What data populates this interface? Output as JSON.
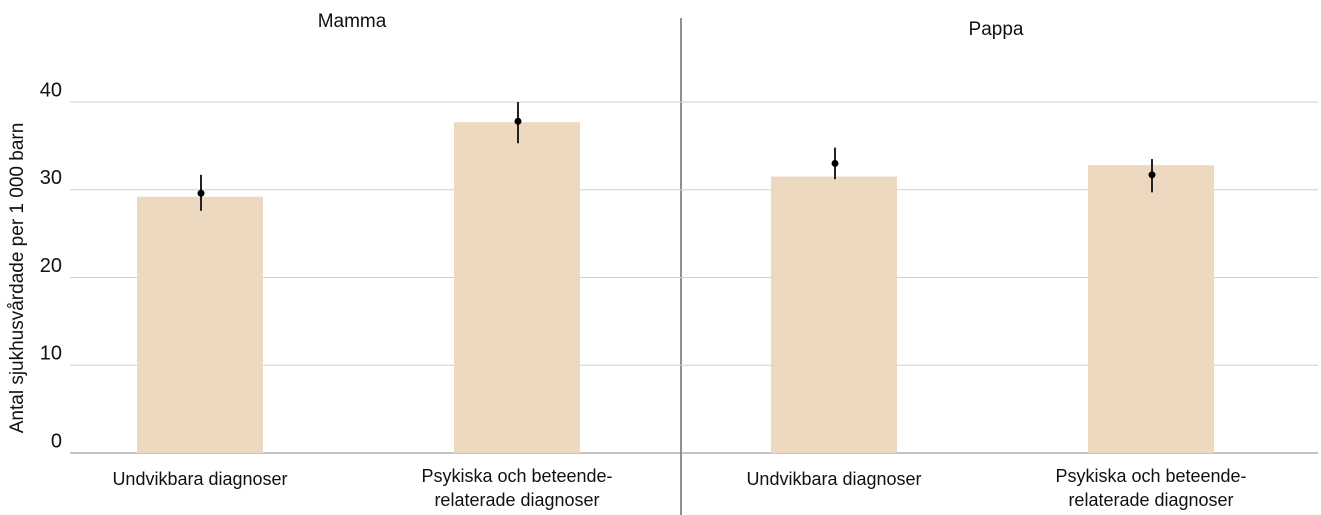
{
  "chart_data": [
    {
      "type": "bar",
      "title": "Mamma",
      "ylabel": "Antal sjukhusvårdade per 1 000 barn",
      "categories": [
        "Undvikbara diagnoser",
        [
          "Psykiska och beteende-",
          "relaterade diagnoser"
        ]
      ],
      "values": [
        29.2,
        37.7
      ],
      "color": "#ecd9c0",
      "points": [
        29.6,
        37.8
      ],
      "error_low": [
        27.6,
        35.3
      ],
      "error_high": [
        31.7,
        40.0
      ],
      "ylim": [
        0,
        40
      ],
      "yticks": [
        0,
        10,
        20,
        30,
        40
      ],
      "grid": true
    },
    {
      "type": "bar",
      "title": "Pappa",
      "categories": [
        "Undvikbara diagnoser",
        [
          "Psykiska och beteende-",
          "relaterade diagnoser"
        ]
      ],
      "values": [
        31.5,
        32.8
      ],
      "color": "#ecd9c0",
      "points": [
        33.0,
        31.7
      ],
      "error_low": [
        31.2,
        29.7
      ],
      "error_high": [
        34.8,
        33.5
      ],
      "ylim": [
        0,
        40
      ],
      "yticks": [
        0,
        10,
        20,
        30,
        40
      ],
      "grid": true
    }
  ]
}
